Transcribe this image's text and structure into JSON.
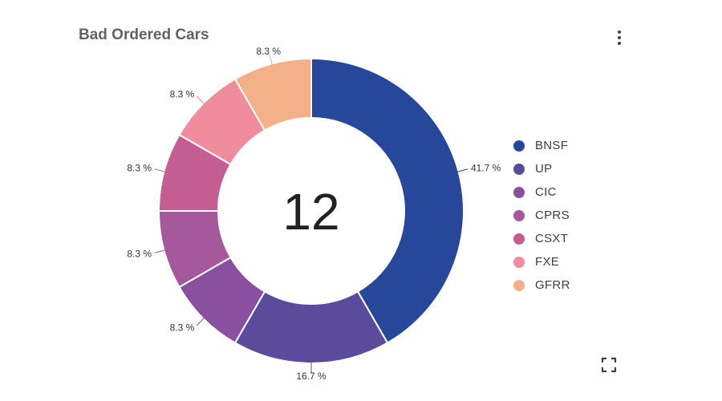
{
  "card": {
    "title": "Bad Ordered Cars",
    "menu_icon": "more-vert-icon",
    "fullscreen_icon": "fullscreen-icon"
  },
  "chart_data": {
    "type": "pie",
    "variant": "donut",
    "title": "Bad Ordered Cars",
    "center_label": "12",
    "categories": [
      "BNSF",
      "UP",
      "CIC",
      "CPRS",
      "CSXT",
      "FXE",
      "GFRR"
    ],
    "values": [
      5,
      2,
      1,
      1,
      1,
      1,
      1
    ],
    "percent_labels": [
      "41.7 %",
      "16.7 %",
      "8.3 %",
      "8.3 %",
      "8.3 %",
      "8.3 %",
      "8.3 %"
    ],
    "colors": [
      "#27479a",
      "#5b4b9c",
      "#8a4f9f",
      "#a6589c",
      "#c45d92",
      "#ef8c9e",
      "#f3b089"
    ],
    "legend_position": "right"
  }
}
